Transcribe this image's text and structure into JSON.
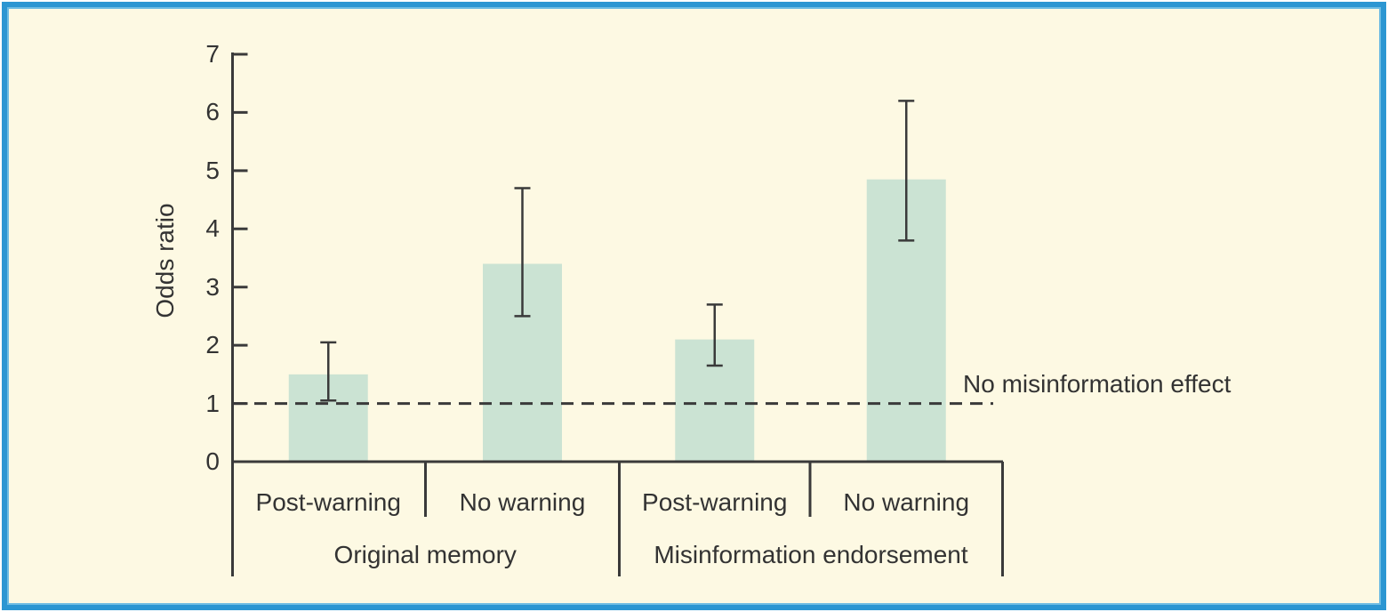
{
  "figure": {
    "ylabel": "Odds ratio",
    "reference_label": "No misinformation effect"
  },
  "chart_data": {
    "type": "bar",
    "title": "",
    "ylabel": "Odds ratio",
    "xlabel": "",
    "ylim": [
      0,
      7
    ],
    "yticks": [
      0,
      1,
      2,
      3,
      4,
      5,
      6,
      7
    ],
    "grid": false,
    "legend": "none",
    "group_labels": [
      "Original memory",
      "Misinformation endorsement"
    ],
    "categories": [
      "Post-warning",
      "No warning",
      "Post-warning",
      "No warning"
    ],
    "bars": [
      {
        "group": "Original memory",
        "condition": "Post-warning",
        "value": 1.5,
        "ci_low": 1.05,
        "ci_high": 2.05
      },
      {
        "group": "Original memory",
        "condition": "No warning",
        "value": 3.4,
        "ci_low": 2.5,
        "ci_high": 4.7
      },
      {
        "group": "Misinformation endorsement",
        "condition": "Post-warning",
        "value": 2.1,
        "ci_low": 1.65,
        "ci_high": 2.7
      },
      {
        "group": "Misinformation endorsement",
        "condition": "No warning",
        "value": 4.85,
        "ci_low": 3.8,
        "ci_high": 6.2
      }
    ],
    "reference_line": {
      "value": 1,
      "label": "No misinformation effect",
      "style": "dashed"
    },
    "error_bars": true
  },
  "colors": {
    "background": "#FDF9E3",
    "frame_blue": "#2C96D2",
    "frame_blue_light": "#6FBCE3",
    "frame_white": "#FFFFFF",
    "bar_fill": "#CBE3D3",
    "line": "#3A3A3A",
    "text": "#333333"
  }
}
